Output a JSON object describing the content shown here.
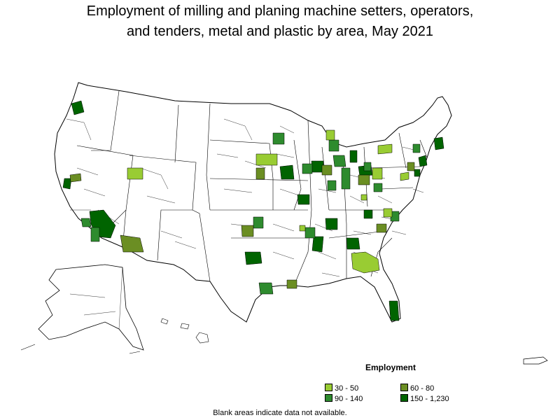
{
  "title_line1": "Employment of milling and planing machine setters, operators,",
  "title_line2": "and tenders, metal and plastic by area, May 2021",
  "legend": {
    "title": "Employment",
    "items": [
      {
        "label": "30 - 50",
        "color": "#99cc33"
      },
      {
        "label": "60 - 80",
        "color": "#6b8e23"
      },
      {
        "label": "90 - 140",
        "color": "#2e8b2e"
      },
      {
        "label": "150 - 1,230",
        "color": "#006400"
      }
    ]
  },
  "footnote": "Blank areas indicate data not available.",
  "map_colors": {
    "blank": "#ffffff",
    "border": "#000000"
  }
}
